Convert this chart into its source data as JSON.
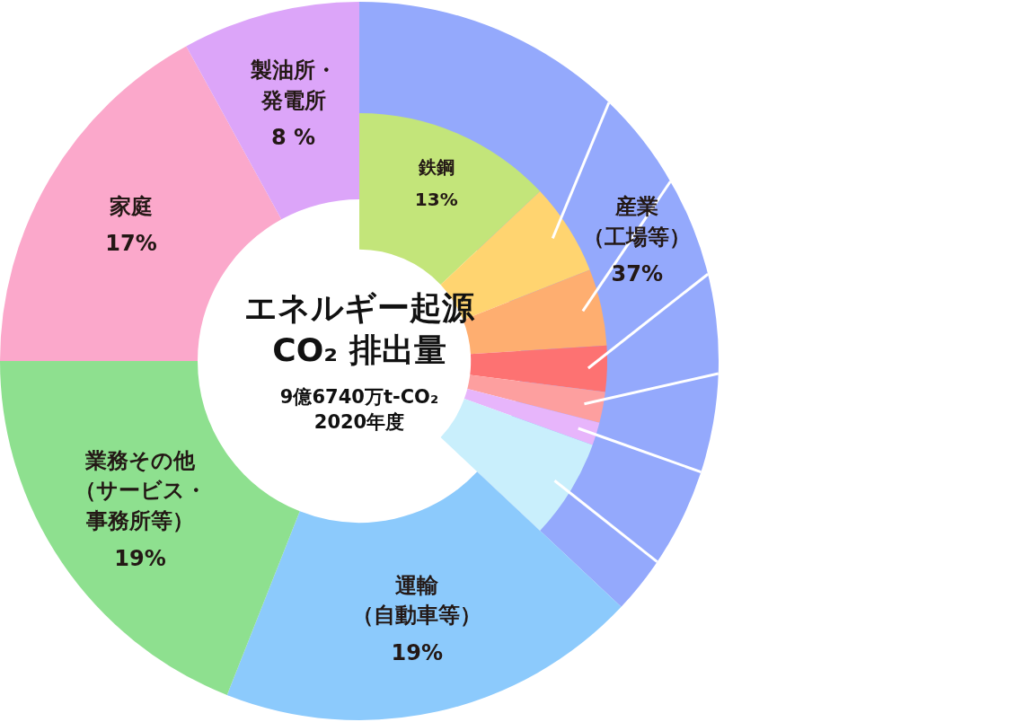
{
  "chart_data": [
    {
      "type": "donut",
      "title": "エネルギー起源CO₂ 排出量",
      "subtitle": "9億6740万t-CO₂",
      "annotations": [
        "2020年度"
      ],
      "categories": [
        "産業（工場等）",
        "運輸（自動車等）",
        "業務その他（サービス・事務所等）",
        "家庭",
        "製油所・発電所"
      ],
      "values": [
        37,
        19,
        19,
        17,
        8
      ],
      "colors": [
        "#94a9fc",
        "#8ccafc",
        "#8ee08f",
        "#fba8cb",
        "#dca5f9"
      ],
      "value_labels": [
        "37%",
        "19%",
        "19%",
        "17%",
        "8 %"
      ]
    },
    {
      "type": "donut",
      "categories": [
        "鉄鋼",
        null,
        null,
        null,
        null,
        null,
        null
      ],
      "values": [
        13,
        6,
        5,
        3,
        2,
        1.5,
        6.5
      ],
      "colors": [
        "#c3e57a",
        "#ffd470",
        "#feae70",
        "#fd7272",
        "#fd9f9f",
        "#e7b5fb",
        "#c9effc"
      ],
      "value_labels": [
        "13%",
        null,
        null,
        null,
        null,
        null,
        null
      ]
    }
  ]
}
